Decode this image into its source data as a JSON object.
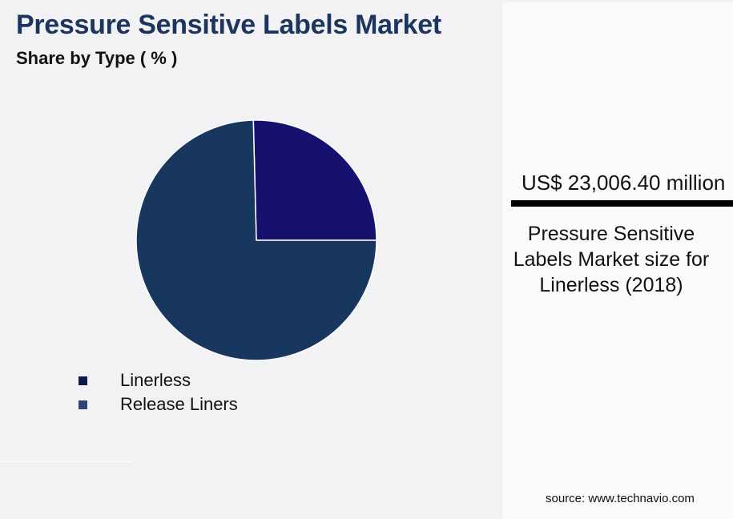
{
  "header": {
    "title": "Pressure Sensitive Labels Market",
    "subtitle": "Share by Type ( % )"
  },
  "chart_data": {
    "type": "pie",
    "title": "Pressure Sensitive Labels Market",
    "subtitle": "Share by Type ( % )",
    "categories": [
      "Linerless",
      "Release Liners"
    ],
    "values": [
      74.6,
      25.4
    ],
    "values_note": "Estimated from slice geometry; no data labels shown",
    "slice_colors": [
      "#17375e",
      "#16106f"
    ],
    "legend": {
      "position": "bottom-left",
      "entries": [
        {
          "label": "Linerless",
          "color": "#0c1c48"
        },
        {
          "label": "Release Liners",
          "color": "#2d4576"
        }
      ]
    }
  },
  "side_panel": {
    "value": "US$ 23,006.40 million",
    "description": "Pressure Sensitive Labels Market size for Linerless (2018)"
  },
  "footer": {
    "source": "source: www.technavio.com"
  }
}
